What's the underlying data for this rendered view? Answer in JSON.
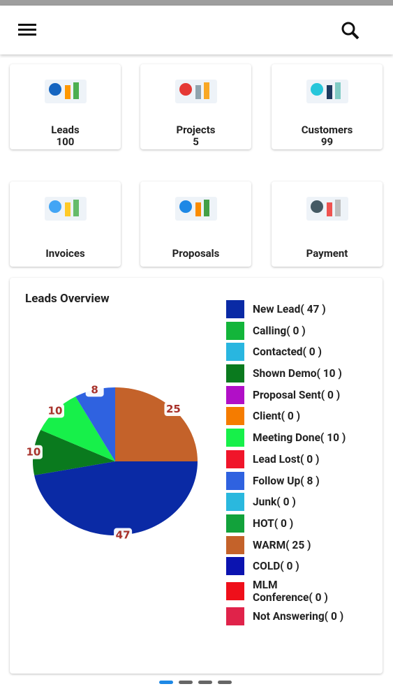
{
  "cards": [
    {
      "title": "Leads",
      "count": 100
    },
    {
      "title": "Projects",
      "count": 5
    },
    {
      "title": "Customers",
      "count": 99
    },
    {
      "title": "Invoices"
    },
    {
      "title": "Proposals"
    },
    {
      "title": "Payment"
    }
  ],
  "chart_data": {
    "type": "pie",
    "title": "Leads Overview",
    "categories": [
      "New Lead( 47 )",
      "Calling( 0 )",
      "Contacted( 0 )",
      "Shown Demo( 10 )",
      "Proposal Sent( 0 )",
      "Client( 0 )",
      "Meeting Done( 10 )",
      "Lead Lost( 0 )",
      "Follow Up( 8 )",
      "Junk( 0 )",
      "HOT( 0 )",
      "WARM( 25 )",
      "COLD( 0 )",
      "MLM\nConference( 0 )",
      "Not Answering( 0 )"
    ],
    "values": [
      47,
      0,
      0,
      10,
      0,
      0,
      10,
      0,
      8,
      0,
      0,
      25,
      0,
      0,
      0
    ],
    "colors": [
      "#0a2aa5",
      "#13b53a",
      "#29b6e0",
      "#0a7a1e",
      "#b10fc7",
      "#f57c00",
      "#17f04a",
      "#f0152a",
      "#2f62e0",
      "#2ab8de",
      "#12a23b",
      "#c4622a",
      "#0b13b0",
      "#ef0f1a",
      "#e0234a"
    ]
  }
}
